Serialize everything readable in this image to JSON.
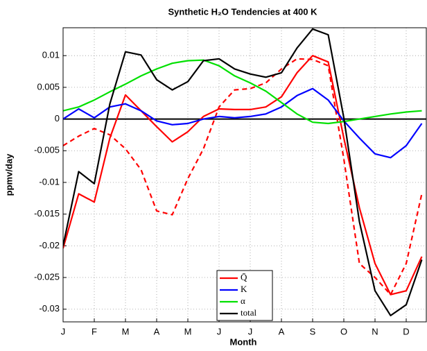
{
  "chart_data": {
    "type": "line",
    "title": "Synthetic H₂O Tendencies at 400 K",
    "x_label": "Month",
    "y_label": "ppmv/day",
    "categories": [
      "J",
      null,
      "F",
      null,
      "M",
      null,
      "A",
      null,
      "M",
      null,
      "J",
      null,
      "J",
      null,
      "A",
      null,
      "S",
      null,
      "O",
      null,
      "N",
      null,
      "D",
      null
    ],
    "ylim": [
      -0.032,
      0.0144
    ],
    "yticks": [
      -0.03,
      -0.025,
      -0.02,
      -0.015,
      -0.01,
      -0.005,
      0,
      0.005,
      0.01
    ],
    "grid": true,
    "zero_line": true,
    "legend": "lower center",
    "series": [
      {
        "name": "Q̄",
        "color": "#ff0000",
        "values": [
          -0.0204,
          -0.0118,
          -0.0131,
          -0.003,
          0.0038,
          0.0013,
          -0.0012,
          -0.0036,
          -0.002,
          0.0004,
          0.0016,
          0.0015,
          0.0015,
          0.0019,
          0.0035,
          0.0073,
          0.01,
          0.009,
          -0.003,
          -0.014,
          -0.0228,
          -0.0277,
          -0.0271,
          -0.0217
        ]
      },
      {
        "color": "#ff0000",
        "dashed": true,
        "values": [
          -0.0042,
          -0.0027,
          -0.0015,
          -0.0025,
          -0.0047,
          -0.008,
          -0.0145,
          -0.0151,
          -0.0094,
          -0.0047,
          0.0019,
          0.0046,
          0.0048,
          0.0057,
          0.0079,
          0.0095,
          0.0094,
          0.0084,
          -0.0063,
          -0.0228,
          -0.025,
          -0.0277,
          -0.0228,
          -0.0118
        ]
      },
      {
        "name": "K",
        "color": "#0000ff",
        "values": [
          0,
          0.0016,
          0.0002,
          0.0019,
          0.0024,
          0.0013,
          -0.0003,
          -0.0009,
          -0.0007,
          0,
          0.0004,
          0.0002,
          0.0004,
          0.0008,
          0.0019,
          0.0037,
          0.0048,
          0.003,
          -0.0003,
          -0.003,
          -0.0055,
          -0.0061,
          -0.0042,
          -0.0007
        ]
      },
      {
        "name": "α",
        "color": "#00e000",
        "values": [
          0.0013,
          0.0019,
          0.003,
          0.0043,
          0.0055,
          0.0068,
          0.0079,
          0.0088,
          0.0092,
          0.0093,
          0.0084,
          0.0068,
          0.0057,
          0.0044,
          0.0026,
          0.0008,
          -0.0005,
          -0.0007,
          -0.0004,
          0,
          0.0004,
          0.0008,
          0.0011,
          0.0013
        ]
      },
      {
        "name": "total",
        "color": "#000000",
        "values": [
          -0.02,
          -0.0083,
          -0.0102,
          0.0024,
          0.0106,
          0.0101,
          0.0062,
          0.0046,
          0.0059,
          0.0092,
          0.0095,
          0.0079,
          0.0071,
          0.0066,
          0.0073,
          0.0112,
          0.0142,
          0.0133,
          0.0002,
          -0.0162,
          -0.0271,
          -0.031,
          -0.0293,
          -0.0222
        ]
      }
    ]
  }
}
